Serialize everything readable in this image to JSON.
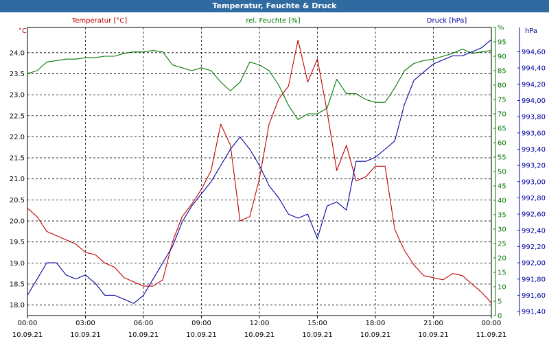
{
  "window_title": "Temperatur, Feuchte & Druck",
  "chart_data": {
    "type": "line",
    "title": "Temperatur, Feuchte & Druck",
    "x_ticks": [
      {
        "time": "00:00",
        "date": "10.09.21"
      },
      {
        "time": "03:00",
        "date": "10.09.21"
      },
      {
        "time": "06:00",
        "date": "10.09.21"
      },
      {
        "time": "09:00",
        "date": "10.09.21"
      },
      {
        "time": "12:00",
        "date": "10.09.21"
      },
      {
        "time": "15:00",
        "date": "10.09.21"
      },
      {
        "time": "18:00",
        "date": "10.09.21"
      },
      {
        "time": "21:00",
        "date": "10.09.21"
      },
      {
        "time": "00:00",
        "date": "11.09.21"
      }
    ],
    "x_range_hours": [
      0,
      24
    ],
    "grid": true,
    "axes": {
      "temperature": {
        "label": "Temperatur [°C]",
        "unit": "°C",
        "range": [
          17.75,
          24.6
        ],
        "ticks": [
          "18.0",
          "18.5",
          "19.0",
          "19.5",
          "20.0",
          "20.5",
          "21.0",
          "21.5",
          "22.0",
          "22.5",
          "23.0",
          "23.5",
          "24.0"
        ]
      },
      "humidity": {
        "label": "rel. Feuchte [%]",
        "unit": "%",
        "range": [
          0,
          100
        ],
        "ticks": [
          "0",
          "5",
          "10",
          "15",
          "20",
          "25",
          "30",
          "35",
          "40",
          "45",
          "50",
          "55",
          "60",
          "65",
          "70",
          "75",
          "80",
          "85",
          "90",
          "95",
          "%"
        ]
      },
      "pressure": {
        "label": "Druck [hPa]",
        "unit": "hPa",
        "range": [
          991.35,
          994.9
        ],
        "ticks": [
          "991,40",
          "991,60",
          "991,80",
          "992,00",
          "992,20",
          "992,40",
          "992,60",
          "992,80",
          "993,00",
          "993,20",
          "993,40",
          "993,60",
          "993,80",
          "994,00",
          "994,20",
          "994,40",
          "994,60"
        ]
      }
    },
    "series": [
      {
        "name": "Temperatur [°C]",
        "color": "#c00000",
        "axis": "temperature",
        "x": [
          0,
          0.5,
          1,
          1.5,
          2,
          2.5,
          3,
          3.5,
          4,
          4.5,
          5,
          5.5,
          6,
          6.5,
          7,
          7.5,
          8,
          8.5,
          9,
          9.5,
          10,
          10.5,
          11,
          11.5,
          12,
          12.5,
          13,
          13.5,
          14,
          14.5,
          15,
          15.5,
          16,
          16.5,
          17,
          17.5,
          18,
          18.5,
          19,
          19.5,
          20,
          20.5,
          21,
          21.5,
          22,
          22.5,
          23,
          23.5,
          24
        ],
        "values": [
          20.3,
          20.1,
          19.75,
          19.65,
          19.55,
          19.45,
          19.25,
          19.2,
          19.0,
          18.9,
          18.65,
          18.55,
          18.45,
          18.45,
          18.6,
          19.5,
          20.1,
          20.4,
          20.75,
          21.2,
          22.3,
          21.8,
          20.0,
          20.1,
          21.0,
          22.3,
          22.9,
          23.2,
          24.3,
          23.3,
          23.85,
          22.6,
          21.2,
          21.8,
          20.95,
          21.05,
          21.3,
          21.3,
          19.8,
          19.3,
          18.95,
          18.7,
          18.65,
          18.6,
          18.75,
          18.7,
          18.5,
          18.3,
          18.05
        ]
      },
      {
        "name": "rel. Feuchte [%]",
        "color": "#007800",
        "axis": "humidity",
        "x": [
          0,
          0.5,
          1,
          1.5,
          2,
          2.5,
          3,
          3.5,
          4,
          4.5,
          5,
          5.5,
          6,
          6.5,
          7,
          7.5,
          8,
          8.5,
          9,
          9.5,
          10,
          10.5,
          11,
          11.5,
          12,
          12.5,
          13,
          13.5,
          14,
          14.5,
          15,
          15.5,
          16,
          16.5,
          17,
          17.5,
          18,
          18.5,
          19,
          19.5,
          20,
          20.5,
          21,
          21.5,
          22,
          22.5,
          23,
          23.5,
          24
        ],
        "values": [
          84,
          85,
          88,
          88.5,
          89,
          89,
          89.5,
          89.5,
          90,
          90,
          91,
          91.5,
          91.5,
          92,
          91.5,
          87,
          86,
          85,
          86,
          85,
          81,
          78,
          81,
          88,
          87,
          85,
          80,
          73,
          68,
          70,
          70,
          72,
          82,
          77,
          77,
          75,
          74,
          74,
          79,
          85,
          87.5,
          88.5,
          89,
          90,
          91,
          92.5,
          91,
          91.5,
          92
        ]
      },
      {
        "name": "Druck [hPa]",
        "color": "#0000a0",
        "axis": "pressure",
        "x": [
          0,
          0.5,
          1,
          1.5,
          2,
          2.5,
          3,
          3.5,
          4,
          4.5,
          5,
          5.5,
          6,
          6.5,
          7,
          7.5,
          8,
          8.5,
          9,
          9.5,
          10,
          10.5,
          11,
          11.5,
          12,
          12.5,
          13,
          13.5,
          14,
          14.5,
          15,
          15.5,
          16,
          16.5,
          17,
          17.5,
          18,
          18.5,
          19,
          19.5,
          20,
          20.5,
          21,
          21.5,
          22,
          22.5,
          23,
          23.5,
          24
        ],
        "values": [
          991.6,
          991.8,
          992.0,
          992.0,
          991.85,
          991.8,
          991.85,
          991.75,
          991.6,
          991.6,
          991.55,
          991.5,
          991.6,
          991.8,
          992.0,
          992.2,
          992.5,
          992.7,
          992.85,
          993.0,
          993.2,
          993.4,
          993.55,
          993.4,
          993.2,
          992.95,
          992.8,
          992.6,
          992.55,
          992.6,
          992.3,
          992.7,
          992.75,
          992.65,
          993.25,
          993.25,
          993.3,
          993.4,
          993.5,
          993.95,
          994.25,
          994.35,
          994.45,
          994.5,
          994.55,
          994.55,
          994.6,
          994.65,
          994.75
        ]
      }
    ]
  }
}
